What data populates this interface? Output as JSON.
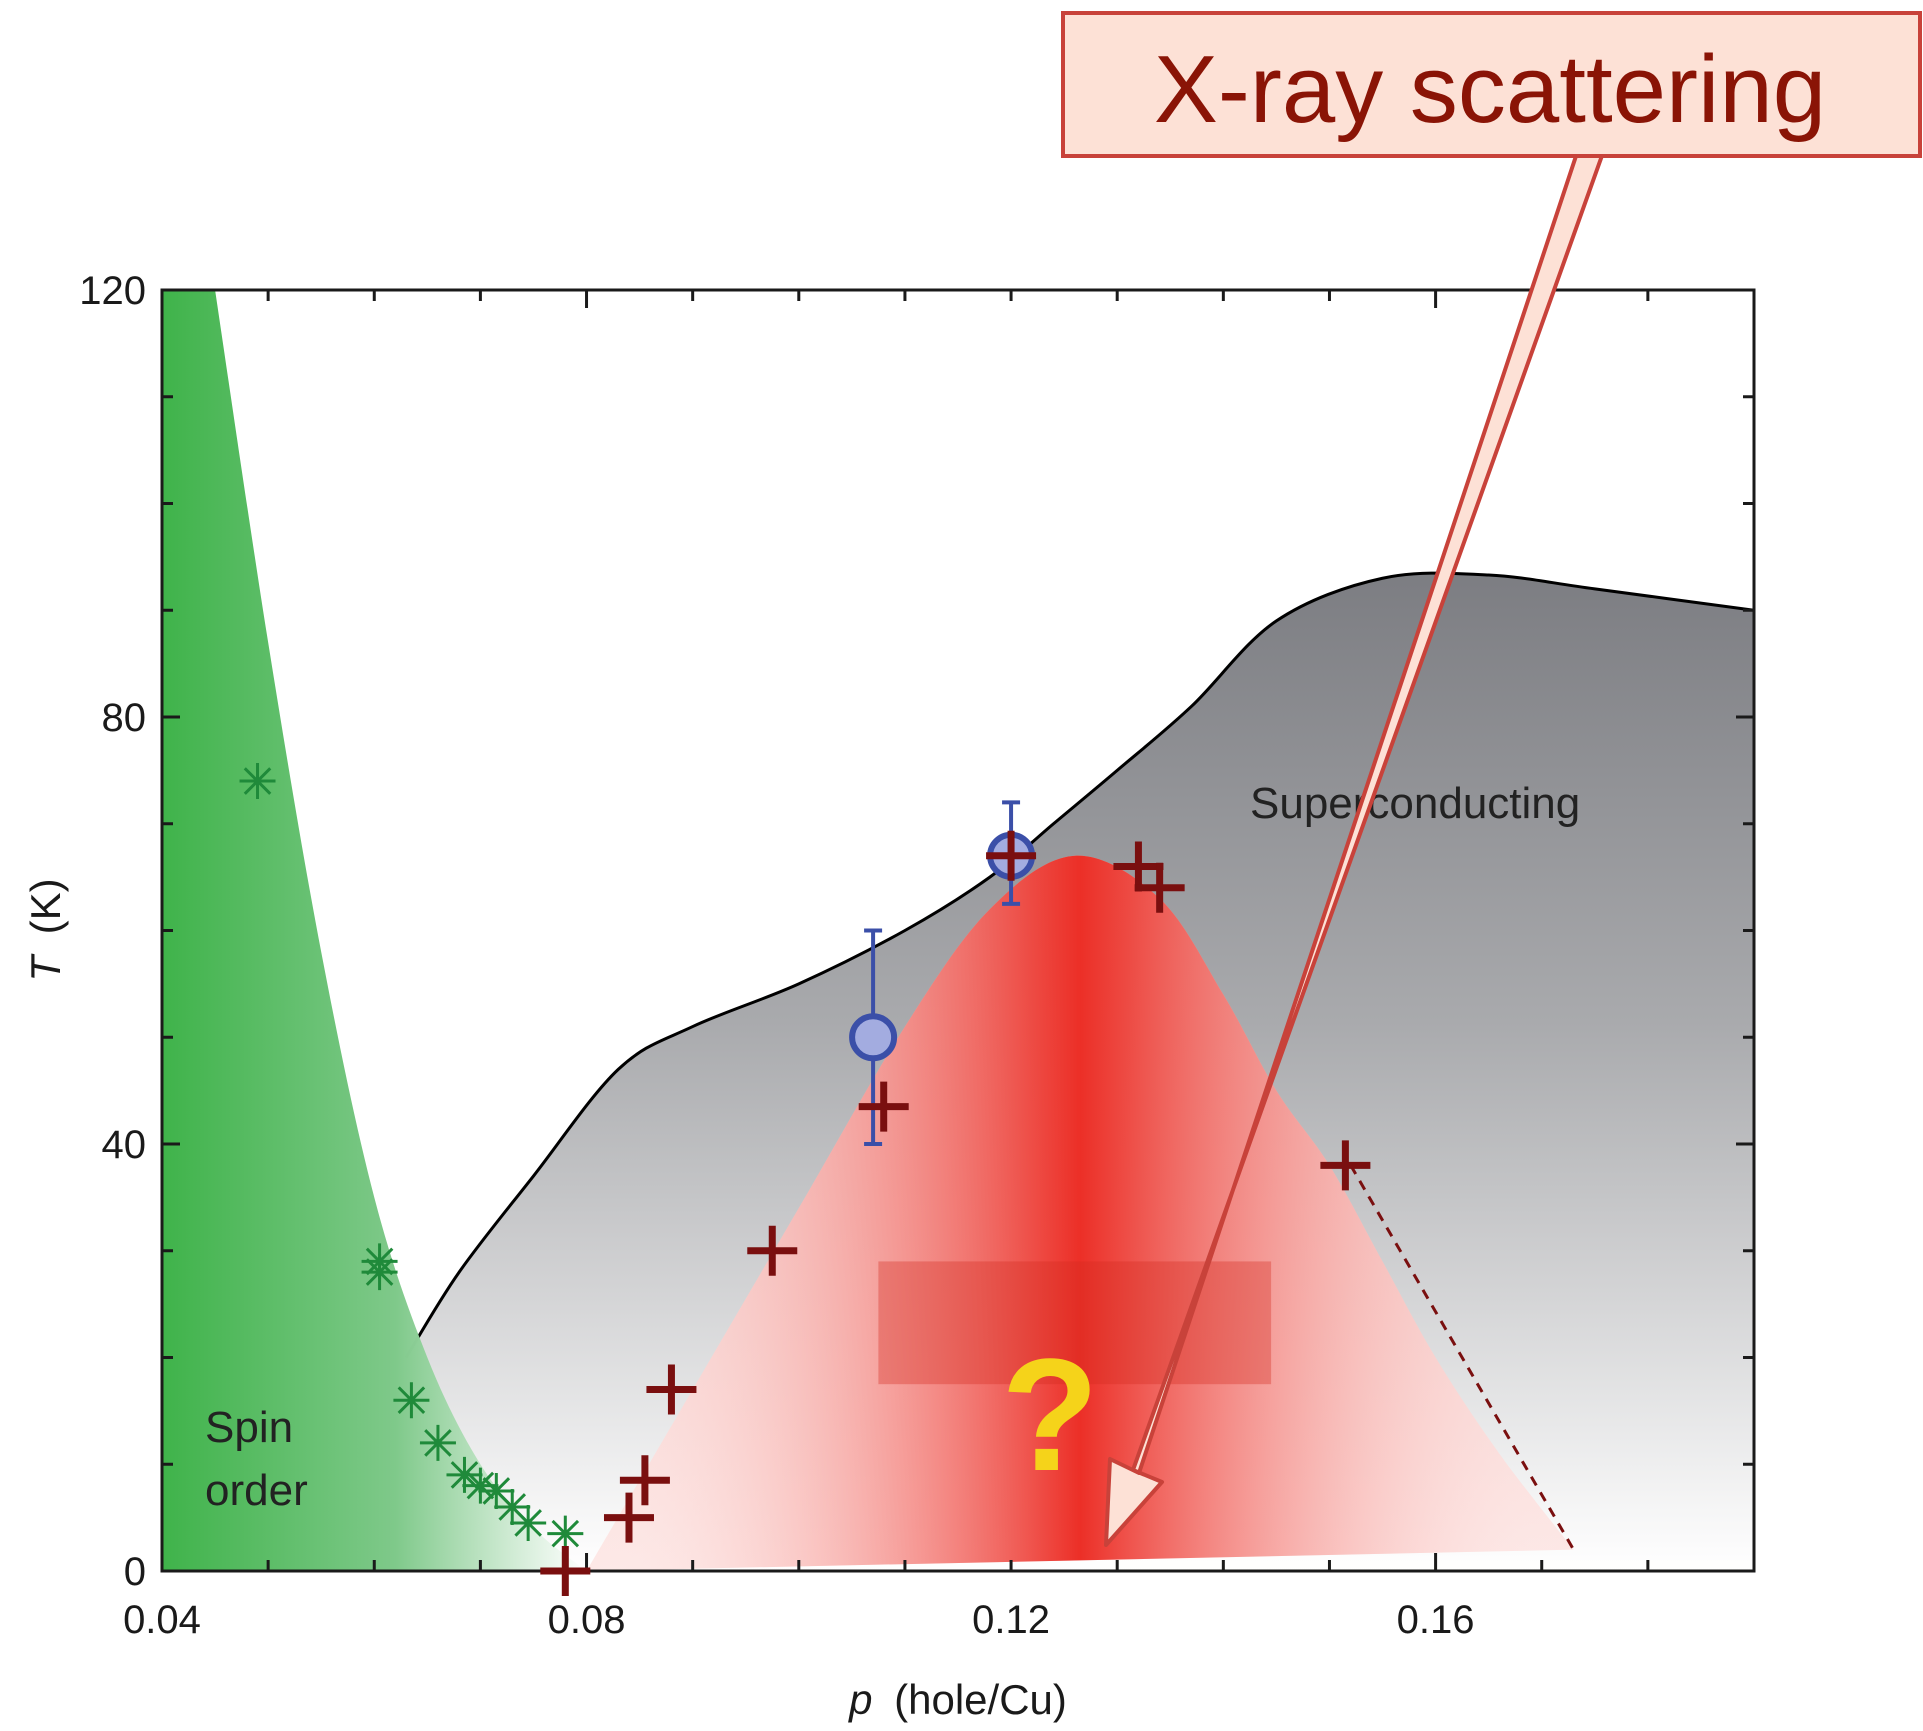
{
  "chart_data": {
    "type": "scatter",
    "xlabel_var": "p",
    "xlabel_unit": "(hole/Cu)",
    "ylabel_var": "T",
    "ylabel_unit": "(K)",
    "xlim": [
      0.04,
      0.19
    ],
    "ylim": [
      0,
      120
    ],
    "x_ticks": [
      "0.04",
      "0.08",
      "0.12",
      "0.16"
    ],
    "y_ticks": [
      "0",
      "40",
      "80",
      "120"
    ],
    "x_tick_values": [
      0.04,
      0.08,
      0.12,
      0.16
    ],
    "y_tick_values": [
      0,
      40,
      80,
      120
    ],
    "regions": {
      "spin_order": [
        "Spin",
        "order"
      ],
      "superconducting": "Superconducting",
      "question_mark": "?"
    },
    "callout": "X-ray scattering",
    "superconducting_boundary": [
      [
        0.063,
        20
      ],
      [
        0.068,
        28
      ],
      [
        0.075,
        37
      ],
      [
        0.083,
        47
      ],
      [
        0.09,
        51
      ],
      [
        0.1,
        55
      ],
      [
        0.11,
        60
      ],
      [
        0.118,
        65
      ],
      [
        0.124,
        70
      ],
      [
        0.13,
        75
      ],
      [
        0.137,
        81
      ],
      [
        0.145,
        89
      ],
      [
        0.155,
        93
      ],
      [
        0.165,
        93.3
      ],
      [
        0.175,
        92
      ],
      [
        0.19,
        90
      ]
    ],
    "charge_order_dome": [
      [
        0.08,
        0
      ],
      [
        0.09,
        17
      ],
      [
        0.1,
        34
      ],
      [
        0.11,
        51
      ],
      [
        0.118,
        62
      ],
      [
        0.126,
        67
      ],
      [
        0.134,
        63
      ],
      [
        0.14,
        54
      ],
      [
        0.145,
        45
      ],
      [
        0.15,
        38
      ],
      [
        0.155,
        29
      ],
      [
        0.16,
        20
      ],
      [
        0.166,
        11
      ],
      [
        0.173,
        2
      ]
    ],
    "charge_order_dashed": [
      [
        0.152,
        38
      ],
      [
        0.173,
        2
      ]
    ],
    "spin_order_boundary": [
      [
        0.045,
        120
      ],
      [
        0.05,
        87
      ],
      [
        0.055,
        58
      ],
      [
        0.06,
        35
      ],
      [
        0.065,
        20
      ],
      [
        0.07,
        10
      ],
      [
        0.075,
        4
      ],
      [
        0.08,
        0
      ]
    ],
    "series": [
      {
        "marker": "asterisk",
        "color": "#1f8a3a",
        "points": [
          [
            0.049,
            74
          ],
          [
            0.0605,
            29
          ],
          [
            0.0605,
            28
          ],
          [
            0.0635,
            16
          ],
          [
            0.066,
            12
          ],
          [
            0.0685,
            9
          ],
          [
            0.07,
            8
          ],
          [
            0.0715,
            7.5
          ],
          [
            0.073,
            6
          ],
          [
            0.0745,
            4.5
          ],
          [
            0.078,
            3.5
          ]
        ]
      },
      {
        "marker": "plus",
        "color": "#7a0f0f",
        "points": [
          [
            0.078,
            0
          ],
          [
            0.084,
            5
          ],
          [
            0.0855,
            8.5
          ],
          [
            0.088,
            17
          ],
          [
            0.0975,
            30
          ],
          [
            0.108,
            43.5
          ],
          [
            0.12,
            67
          ],
          [
            0.132,
            66
          ],
          [
            0.134,
            64
          ],
          [
            0.1515,
            38
          ]
        ]
      },
      {
        "marker": "circle",
        "color": "#3b4fa8",
        "points": [
          {
            "x": 0.107,
            "y": 50,
            "ylow": 40,
            "yhigh": 60
          },
          {
            "x": 0.12,
            "y": 67,
            "ylow": 62.5,
            "yhigh": 72
          }
        ]
      }
    ],
    "qmark_box": {
      "x0": 0.1075,
      "x1": 0.1445,
      "y0": 17.5,
      "y1": 29
    },
    "colors": {
      "spin_green": "#3fb34a",
      "charge_red": "#ec2f27",
      "sc_gray_top": "#7f8085",
      "callout_fill": "#fde1d6",
      "callout_border": "#c8423a",
      "callout_text": "#8a1406",
      "question_yellow": "#f5d31a"
    }
  }
}
